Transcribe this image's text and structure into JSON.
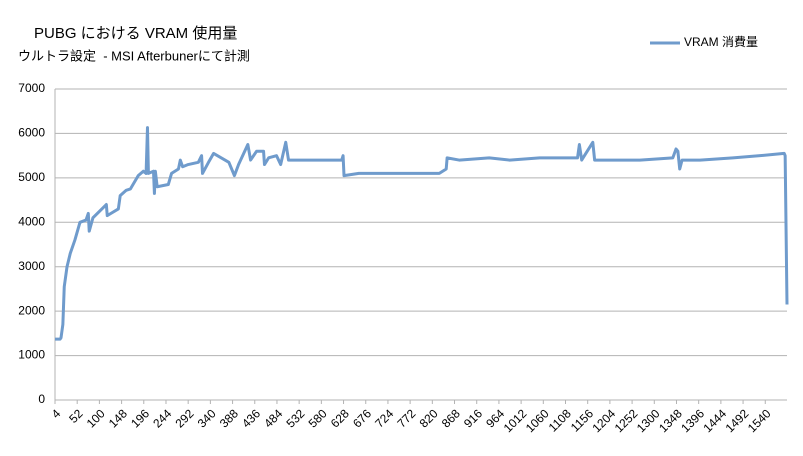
{
  "chart_data": {
    "type": "line",
    "title": "PUBG における VRAM 使用量",
    "subtitle": "ウルトラ設定  - MSI Afterbunerにて計測",
    "legend_position": "top-right",
    "grid": true,
    "xlim": [
      4,
      1587
    ],
    "xticks": [
      4,
      52,
      100,
      148,
      196,
      244,
      292,
      340,
      388,
      436,
      484,
      532,
      580,
      628,
      676,
      724,
      772,
      820,
      868,
      916,
      964,
      1012,
      1060,
      1108,
      1156,
      1204,
      1252,
      1300,
      1348,
      1396,
      1444,
      1492,
      1540
    ],
    "ylim": [
      0,
      7000
    ],
    "yticks": [
      0,
      1000,
      2000,
      3000,
      4000,
      5000,
      6000,
      7000
    ],
    "x": [
      4,
      15,
      17,
      21,
      24,
      30,
      37,
      47,
      58,
      71,
      76,
      78,
      86,
      115,
      117,
      125,
      141,
      145,
      158,
      167,
      184,
      195,
      201,
      204,
      206,
      217,
      219,
      221,
      225,
      249,
      256,
      271,
      275,
      280,
      292,
      314,
      321,
      323,
      336,
      347,
      380,
      392,
      401,
      421,
      427,
      440,
      455,
      457,
      466,
      483,
      492,
      503,
      509,
      531,
      624,
      627,
      629,
      661,
      835,
      850,
      852,
      878,
      943,
      987,
      1052,
      1134,
      1138,
      1143,
      1167,
      1171,
      1269,
      1340,
      1347,
      1351,
      1355,
      1360,
      1399,
      1470,
      1529,
      1581,
      1583,
      1587
    ],
    "series": [
      {
        "name": "VRAM 消費量",
        "color": "#6f9bcc",
        "values": [
          1370,
          1370,
          1400,
          1700,
          2550,
          3000,
          3300,
          3600,
          4000,
          4050,
          4200,
          3800,
          4100,
          4400,
          4150,
          4200,
          4300,
          4600,
          4720,
          4750,
          5050,
          5150,
          5100,
          6130,
          5100,
          5150,
          4650,
          5150,
          4800,
          4850,
          5100,
          5200,
          5400,
          5250,
          5300,
          5350,
          5500,
          5100,
          5350,
          5550,
          5350,
          5050,
          5300,
          5750,
          5400,
          5600,
          5600,
          5300,
          5450,
          5500,
          5300,
          5800,
          5400,
          5400,
          5400,
          5500,
          5050,
          5100,
          5100,
          5200,
          5450,
          5400,
          5450,
          5400,
          5450,
          5450,
          5750,
          5400,
          5800,
          5400,
          5400,
          5450,
          5650,
          5600,
          5200,
          5400,
          5400,
          5450,
          5500,
          5550,
          5500,
          2150
        ]
      }
    ]
  }
}
